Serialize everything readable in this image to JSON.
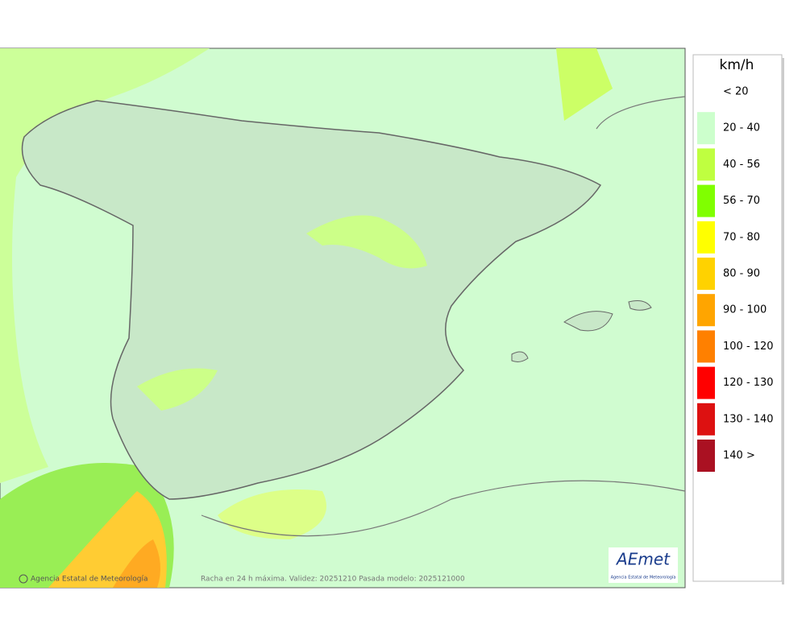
{
  "map": {
    "footer_credit": "Agencia Estatal de Meteorología",
    "footer_caption": "Racha en 24 h máxima. Validez: 20251210 Pasada modelo: 2025121000",
    "logo": {
      "mark": "AEmet",
      "caption": "Agencia Estatal de Meteorología"
    }
  },
  "legend": {
    "unit": "km/h",
    "classes": [
      {
        "label": "< 20"
      },
      {
        "label": "20 - 40",
        "color": "#ccffcc"
      },
      {
        "label": "40 - 56",
        "color": "#bfff40"
      },
      {
        "label": "56 - 70",
        "color": "#80ff00"
      },
      {
        "label": "70 - 80",
        "color": "#ffff00"
      },
      {
        "label": "80 - 90",
        "color": "#ffd200"
      },
      {
        "label": "90 - 100",
        "color": "#ffa500"
      },
      {
        "label": "100 - 120",
        "color": "#ff8000"
      },
      {
        "label": "120 - 130",
        "color": "#ff0000"
      },
      {
        "label": "130 - 140",
        "color": "#dd1111"
      },
      {
        "label": "140 >",
        "color": "#aa1122"
      }
    ]
  }
}
